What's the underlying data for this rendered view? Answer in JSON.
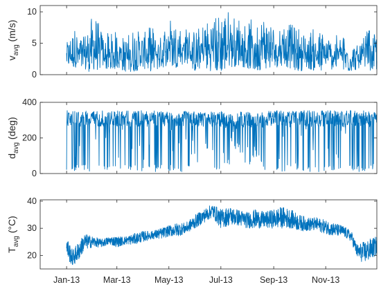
{
  "chart_data": [
    {
      "type": "line",
      "ylabel": {
        "main": "v",
        "sub": "avg",
        "unit": " (m/s)"
      },
      "yticks": [
        0,
        5,
        10
      ],
      "ylim": [
        0,
        11
      ],
      "xlim": [
        "2012-12-01",
        "2013-12-31"
      ],
      "xticks": [],
      "color": "#0072BD",
      "series": [
        {
          "x": [
            "2013-01-01",
            "2013-01-11",
            "2013-01-21",
            "2013-02-01",
            "2013-02-11",
            "2013-02-21",
            "2013-03-01",
            "2013-03-11",
            "2013-03-21",
            "2013-04-01",
            "2013-04-11",
            "2013-04-21",
            "2013-05-01",
            "2013-05-11",
            "2013-05-21",
            "2013-06-01",
            "2013-06-11",
            "2013-06-21",
            "2013-07-01",
            "2013-07-11",
            "2013-07-21",
            "2013-08-01",
            "2013-08-11",
            "2013-08-21",
            "2013-09-01",
            "2013-09-11",
            "2013-09-21",
            "2013-10-01",
            "2013-10-11",
            "2013-10-21",
            "2013-11-01",
            "2013-11-11",
            "2013-11-21",
            "2013-12-01",
            "2013-12-11",
            "2013-12-21",
            "2013-12-31"
          ],
          "low": [
            1.5,
            1.0,
            0.5,
            0.5,
            1.0,
            0.5,
            1.0,
            0.5,
            0.5,
            1.0,
            0.5,
            1.0,
            1.5,
            1.0,
            2.0,
            0.5,
            1.0,
            0.5,
            0.5,
            1.0,
            1.5,
            1.0,
            0.5,
            1.0,
            1.0,
            1.5,
            1.0,
            0.5,
            1.0,
            0.5,
            0.5,
            1.0,
            0.5,
            0.5,
            1.0,
            0.5,
            0.8
          ],
          "high": [
            5.0,
            7.5,
            6.0,
            10.5,
            7.0,
            6.5,
            7.0,
            6.0,
            7.5,
            6.5,
            8.0,
            6.0,
            9.5,
            8.0,
            7.5,
            7.0,
            8.5,
            9.0,
            10.0,
            10.5,
            9.5,
            9.0,
            8.5,
            9.5,
            8.0,
            9.0,
            8.0,
            7.5,
            7.0,
            7.5,
            6.5,
            6.0,
            7.0,
            5.0,
            4.5,
            7.5,
            6.5
          ]
        }
      ]
    },
    {
      "type": "line",
      "ylabel": {
        "main": "d",
        "sub": "avg",
        "unit": " (deg)"
      },
      "yticks": [
        0,
        200,
        400
      ],
      "ylim": [
        0,
        400
      ],
      "xlim": [
        "2012-12-01",
        "2013-12-31"
      ],
      "xticks": [],
      "color": "#0072BD",
      "series": [
        {
          "x": [
            "2013-01-01",
            "2013-01-11",
            "2013-01-21",
            "2013-02-01",
            "2013-02-11",
            "2013-02-21",
            "2013-03-01",
            "2013-03-11",
            "2013-03-21",
            "2013-04-01",
            "2013-04-11",
            "2013-04-21",
            "2013-05-01",
            "2013-05-11",
            "2013-05-21",
            "2013-06-01",
            "2013-06-11",
            "2013-06-21",
            "2013-07-01",
            "2013-07-11",
            "2013-07-21",
            "2013-08-01",
            "2013-08-11",
            "2013-08-21",
            "2013-09-01",
            "2013-09-11",
            "2013-09-21",
            "2013-10-01",
            "2013-10-11",
            "2013-10-21",
            "2013-11-01",
            "2013-11-11",
            "2013-11-21",
            "2013-12-01",
            "2013-12-11",
            "2013-12-21",
            "2013-12-31"
          ],
          "low": [
            10,
            10,
            10,
            10,
            10,
            10,
            10,
            10,
            10,
            10,
            10,
            10,
            10,
            10,
            10,
            10,
            200,
            10,
            10,
            50,
            150,
            10,
            100,
            10,
            10,
            10,
            10,
            10,
            10,
            10,
            10,
            10,
            10,
            10,
            10,
            10,
            30
          ],
          "high": [
            355,
            355,
            350,
            355,
            355,
            350,
            355,
            355,
            350,
            355,
            355,
            350,
            355,
            355,
            350,
            355,
            345,
            350,
            350,
            340,
            345,
            350,
            345,
            350,
            355,
            355,
            350,
            355,
            355,
            350,
            355,
            355,
            350,
            355,
            355,
            350,
            345
          ]
        }
      ]
    },
    {
      "type": "line",
      "ylabel": {
        "main": "T",
        "sub": "avg",
        "unit": " (°C)"
      },
      "yticks": [
        20,
        30,
        40
      ],
      "ylim": [
        15,
        40.5
      ],
      "xlim": [
        "2012-12-01",
        "2013-12-31"
      ],
      "xticks": [
        {
          "date": "2013-01-01",
          "label": "Jan-13"
        },
        {
          "date": "2013-03-01",
          "label": "Mar-13"
        },
        {
          "date": "2013-05-01",
          "label": "May-13"
        },
        {
          "date": "2013-07-01",
          "label": "Jul-13"
        },
        {
          "date": "2013-09-01",
          "label": "Sep-13"
        },
        {
          "date": "2013-11-01",
          "label": "Nov-13"
        }
      ],
      "color": "#0072BD",
      "series": [
        {
          "x": [
            "2013-01-01",
            "2013-01-08",
            "2013-01-15",
            "2013-01-22",
            "2013-02-01",
            "2013-02-11",
            "2013-02-21",
            "2013-03-01",
            "2013-03-11",
            "2013-03-21",
            "2013-04-01",
            "2013-04-11",
            "2013-04-21",
            "2013-05-01",
            "2013-05-11",
            "2013-05-21",
            "2013-06-01",
            "2013-06-11",
            "2013-06-21",
            "2013-07-01",
            "2013-07-11",
            "2013-07-21",
            "2013-08-01",
            "2013-08-11",
            "2013-08-21",
            "2013-09-01",
            "2013-09-11",
            "2013-09-21",
            "2013-10-01",
            "2013-10-11",
            "2013-10-21",
            "2013-11-01",
            "2013-11-11",
            "2013-11-21",
            "2013-12-01",
            "2013-12-08",
            "2013-12-15",
            "2013-12-22",
            "2013-12-31"
          ],
          "low": [
            19,
            16,
            18,
            22,
            23,
            23,
            24,
            23,
            24,
            24,
            25,
            26,
            26,
            27,
            27,
            28,
            30,
            32,
            34,
            30,
            31,
            31,
            30,
            30,
            30,
            30,
            30,
            30,
            29,
            29,
            29,
            28,
            27,
            27,
            25,
            19,
            17,
            18,
            20
          ],
          "high": [
            27,
            22,
            25,
            28,
            27,
            26,
            27,
            27,
            27,
            28,
            29,
            29,
            30,
            31,
            32,
            32,
            35,
            37,
            39,
            37,
            38,
            37,
            36,
            37,
            36,
            37,
            38,
            37,
            35,
            34,
            34,
            33,
            32,
            31,
            29,
            24,
            25,
            26,
            27
          ]
        }
      ]
    }
  ]
}
